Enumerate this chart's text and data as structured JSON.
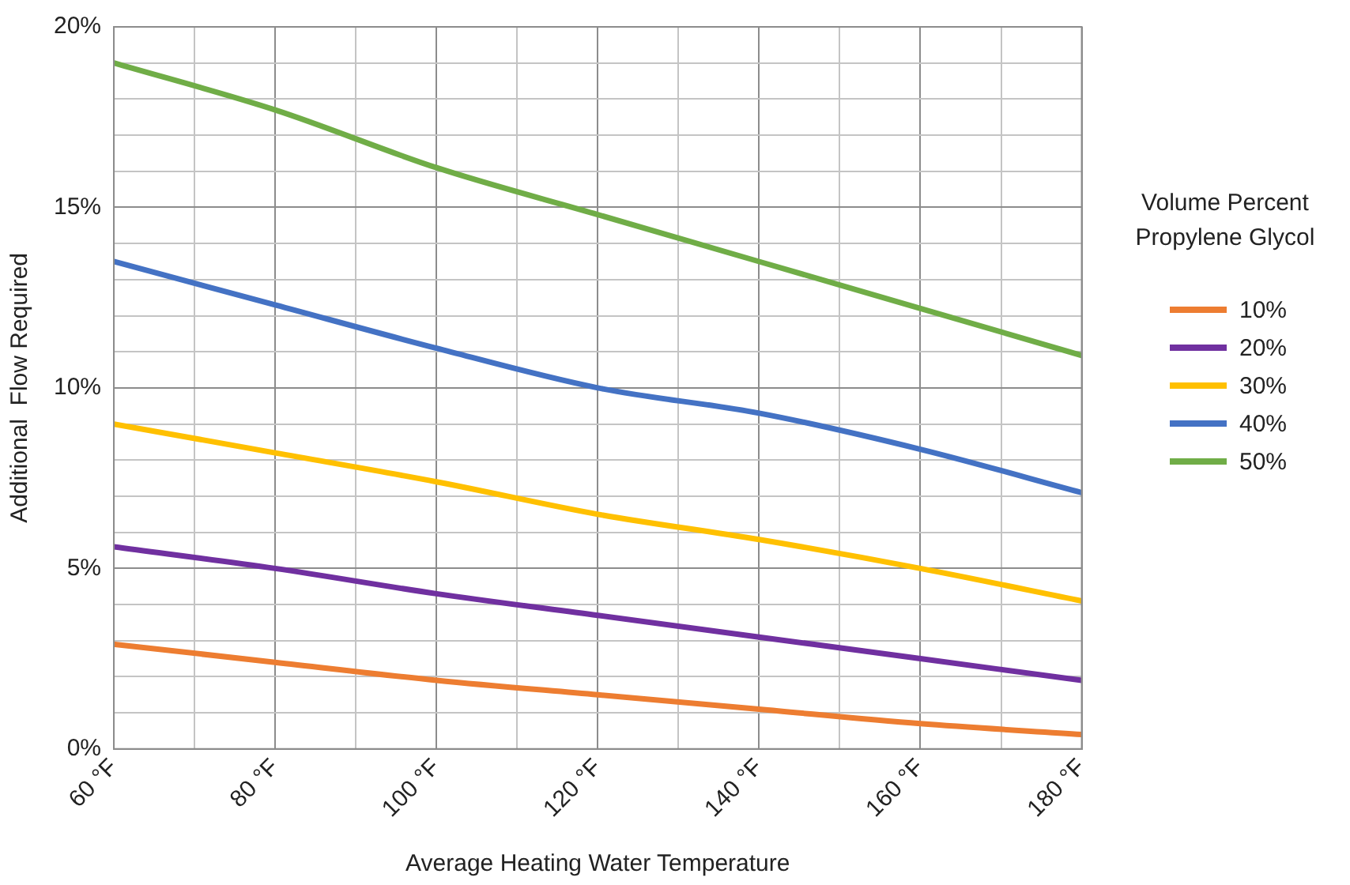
{
  "chart_data": {
    "type": "line",
    "xlabel": "Average Heating Water Temperature",
    "ylabel": "Additional  Flow Required",
    "legend_title": "Volume Percent Propylene Glycol",
    "legend": "right",
    "grid": true,
    "marker": "none",
    "line_style": "solid",
    "x": [
      60,
      80,
      100,
      120,
      140,
      160,
      180
    ],
    "xlim": [
      60,
      180
    ],
    "xticks": [
      {
        "value": 60,
        "label": "60 °F"
      },
      {
        "value": 70,
        "label": null
      },
      {
        "value": 80,
        "label": "80 °F"
      },
      {
        "value": 90,
        "label": null
      },
      {
        "value": 100,
        "label": "100 °F"
      },
      {
        "value": 110,
        "label": null
      },
      {
        "value": 120,
        "label": "120 °F"
      },
      {
        "value": 130,
        "label": null
      },
      {
        "value": 140,
        "label": "140 °F"
      },
      {
        "value": 150,
        "label": null
      },
      {
        "value": 160,
        "label": "160 °F"
      },
      {
        "value": 170,
        "label": null
      },
      {
        "value": 180,
        "label": "180 °F"
      }
    ],
    "ylim": [
      0,
      20
    ],
    "yticks": [
      {
        "value": 0,
        "label": "0%"
      },
      {
        "value": 1,
        "label": null
      },
      {
        "value": 2,
        "label": null
      },
      {
        "value": 3,
        "label": null
      },
      {
        "value": 4,
        "label": null
      },
      {
        "value": 5,
        "label": "5%"
      },
      {
        "value": 6,
        "label": null
      },
      {
        "value": 7,
        "label": null
      },
      {
        "value": 8,
        "label": null
      },
      {
        "value": 9,
        "label": null
      },
      {
        "value": 10,
        "label": "10%"
      },
      {
        "value": 11,
        "label": null
      },
      {
        "value": 12,
        "label": null
      },
      {
        "value": 13,
        "label": null
      },
      {
        "value": 14,
        "label": null
      },
      {
        "value": 15,
        "label": "15%"
      },
      {
        "value": 16,
        "label": null
      },
      {
        "value": 17,
        "label": null
      },
      {
        "value": 18,
        "label": null
      },
      {
        "value": 19,
        "label": null
      },
      {
        "value": 20,
        "label": "20%"
      }
    ],
    "series": [
      {
        "name": "10%",
        "color": "#ed7d31",
        "values": [
          2.9,
          2.4,
          1.9,
          1.5,
          1.1,
          0.7,
          0.4
        ]
      },
      {
        "name": "20%",
        "color": "#7030a0",
        "values": [
          5.6,
          5.0,
          4.3,
          3.7,
          3.1,
          2.5,
          1.9
        ]
      },
      {
        "name": "30%",
        "color": "#ffc000",
        "values": [
          9.0,
          8.2,
          7.4,
          6.5,
          5.8,
          5.0,
          4.1
        ]
      },
      {
        "name": "40%",
        "color": "#4472c4",
        "values": [
          13.5,
          12.3,
          11.1,
          10.0,
          9.3,
          8.3,
          7.1
        ]
      },
      {
        "name": "50%",
        "color": "#70ad47",
        "values": [
          19.0,
          17.7,
          16.1,
          14.8,
          13.5,
          12.2,
          10.9
        ]
      }
    ]
  }
}
